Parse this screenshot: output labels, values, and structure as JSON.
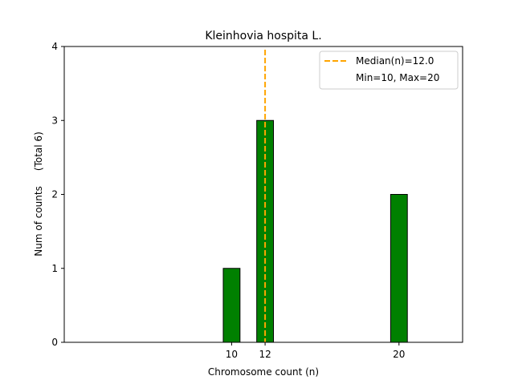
{
  "chart_data": {
    "type": "bar",
    "title": "Kleinhovia hospita L.",
    "xlabel": "Chromosome count (n)",
    "ylabel": "Num of counts     (Total 6)",
    "x": [
      10,
      12,
      20
    ],
    "values": [
      1,
      3,
      2
    ],
    "bar_width": 1,
    "xlim": [
      0,
      23.8
    ],
    "ylim": [
      0,
      4
    ],
    "xticks": [
      10,
      12,
      20
    ],
    "yticks": [
      0,
      1,
      2,
      3,
      4
    ],
    "bar_color": "#008000",
    "bar_edge_color": "#000000",
    "median_line": {
      "x": 12,
      "color": "#ffa500"
    },
    "legend": {
      "placement": "top-right",
      "entries": [
        "Median(n)=12.0",
        "Min=10, Max=20"
      ]
    },
    "grid": false
  }
}
